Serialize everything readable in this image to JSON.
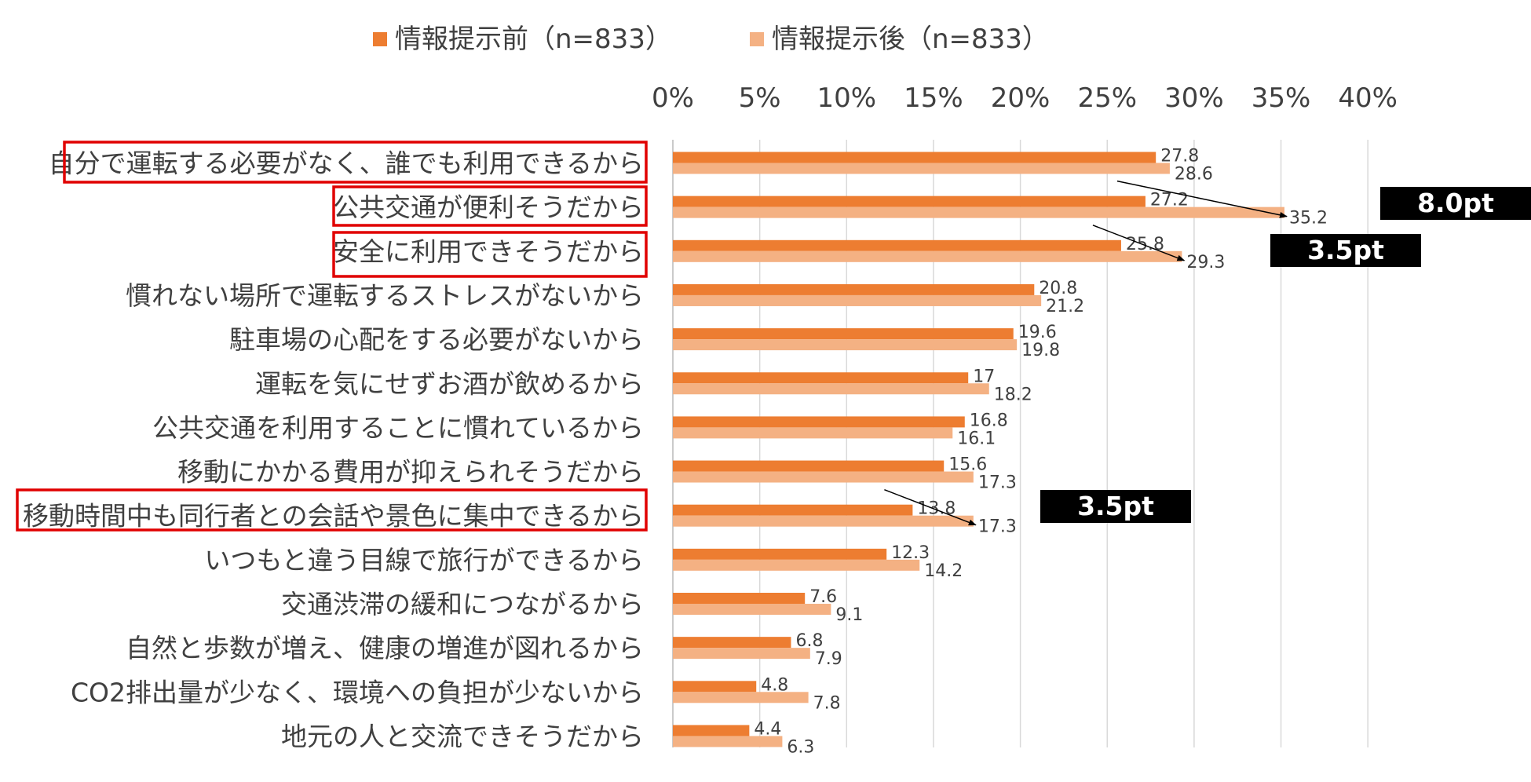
{
  "chart_data": {
    "type": "bar",
    "orientation": "horizontal",
    "categories": [
      "自分で運転する必要がなく、誰でも利用できるから",
      "公共交通が便利そうだから",
      "安全に利用できそうだから",
      "慣れない場所で運転するストレスがないから",
      "駐車場の心配をする必要がないから",
      "運転を気にせずお酒が飲めるから",
      "公共交通を利用することに慣れているから",
      "移動にかかる費用が抑えられそうだから",
      "移動時間中も同行者との会話や景色に集中できるから",
      "いつもと違う目線で旅行ができるから",
      "交通渋滞の緩和につながるから",
      "自然と歩数が増え、健康の増進が図れるから",
      "CO2排出量が少なく、環境への負担が少ないから",
      "地元の人と交流できそうだから"
    ],
    "series": [
      {
        "name": "情報提示前（n=833）",
        "color": "#ED7D31",
        "values": [
          27.8,
          27.2,
          25.8,
          20.8,
          19.6,
          17,
          16.8,
          15.6,
          13.8,
          12.3,
          7.6,
          6.8,
          4.8,
          4.4
        ],
        "labels": [
          "27.8",
          "27.2",
          "25.8",
          "20.8",
          "19.6",
          "17",
          "16.8",
          "15.6",
          "13.8",
          "12.3",
          "7.6",
          "6.8",
          "4.8",
          "4.4"
        ]
      },
      {
        "name": "情報提示後（n=833）",
        "color": "#F4B183",
        "values": [
          28.6,
          35.2,
          29.3,
          21.2,
          19.8,
          18.2,
          16.1,
          17.3,
          17.3,
          14.2,
          9.1,
          7.9,
          7.8,
          6.3
        ],
        "labels": [
          "28.6",
          "35.2",
          "29.3",
          "21.2",
          "19.8",
          "18.2",
          "16.1",
          "17.3",
          "17.3",
          "14.2",
          "9.1",
          "7.9",
          "7.8",
          "6.3"
        ]
      }
    ],
    "xlim": [
      0,
      40
    ],
    "xticks": [
      0,
      5,
      10,
      15,
      20,
      25,
      30,
      35,
      40
    ],
    "xtick_labels": [
      "0%",
      "5%",
      "10%",
      "15%",
      "20%",
      "25%",
      "30%",
      "35%",
      "40%"
    ],
    "x_axis_position": "top",
    "grid": true,
    "legend_position": "top",
    "highlighted_categories": [
      0,
      1,
      2,
      8
    ],
    "highlight_color": "#E00000",
    "annotations": [
      {
        "category_index": 1,
        "text": "8.0pt"
      },
      {
        "category_index": 2,
        "text": "3.5pt"
      },
      {
        "category_index": 8,
        "text": "3.5pt"
      }
    ]
  }
}
